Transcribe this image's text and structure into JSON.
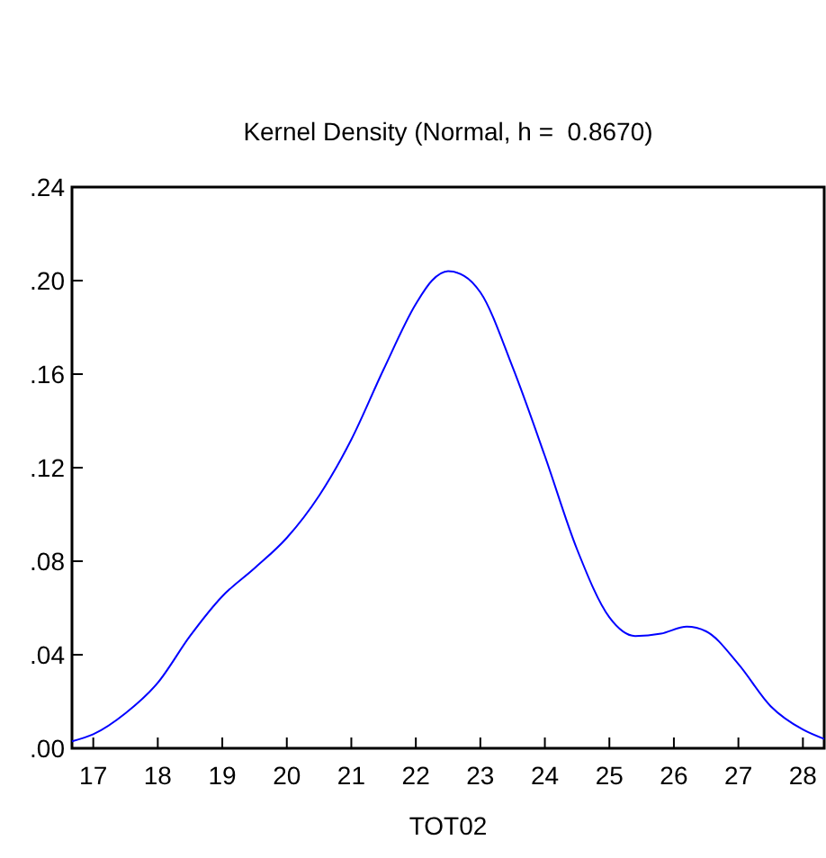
{
  "chart_data": {
    "type": "line",
    "title": "Kernel Density (Normal, h =  0.8670)",
    "xlabel": "TOT02",
    "x": [
      16.67,
      17,
      17.5,
      18,
      18.5,
      19,
      19.5,
      20,
      20.5,
      21,
      21.5,
      22,
      22.25,
      22.5,
      22.75,
      23,
      23.5,
      24,
      24.5,
      25,
      25.4,
      25.8,
      26.2,
      26.5,
      27,
      27.5,
      28,
      28.33
    ],
    "series": [
      {
        "color": "#0000ff",
        "values": [
          0.003,
          0.006,
          0.015,
          0.028,
          0.048,
          0.065,
          0.077,
          0.09,
          0.108,
          0.132,
          0.162,
          0.19,
          0.2,
          0.204,
          0.202,
          0.195,
          0.163,
          0.125,
          0.085,
          0.056,
          0.048,
          0.049,
          0.052,
          0.05,
          0.036,
          0.018,
          0.008,
          0.004
        ]
      }
    ],
    "xlim": [
      16.67,
      28.33
    ],
    "xticks": [
      17,
      18,
      19,
      20,
      21,
      22,
      23,
      24,
      25,
      26,
      27,
      28
    ],
    "ylim": [
      0,
      0.24
    ],
    "yticks": [
      {
        "value": 0,
        "label": ".00"
      },
      {
        "value": 0.04,
        "label": ".04"
      },
      {
        "value": 0.08,
        "label": ".08"
      },
      {
        "value": 0.12,
        "label": ".12"
      },
      {
        "value": 0.16,
        "label": ".16"
      },
      {
        "value": 0.2,
        "label": ".20"
      },
      {
        "value": 0.24,
        "label": ".24"
      }
    ],
    "grid": false,
    "marker": "none",
    "line_style": "solid"
  }
}
